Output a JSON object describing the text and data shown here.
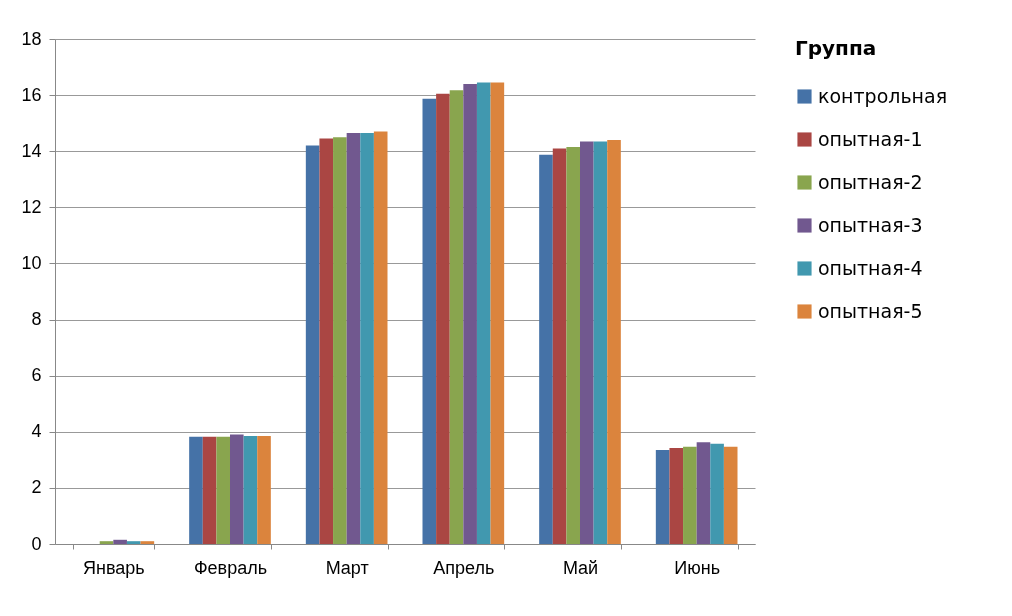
{
  "chart_data": {
    "type": "bar",
    "categories": [
      "Январь",
      "Февраль",
      "Март",
      "Апрель",
      "Май",
      "Июнь"
    ],
    "legend_title": "Группа",
    "legend": "right",
    "grid": "y",
    "ylim": [
      0,
      18
    ],
    "yticks": [
      0,
      2,
      4,
      6,
      8,
      10,
      12,
      14,
      16,
      18
    ],
    "series": [
      {
        "name": "контрольная",
        "color": "#4572a7",
        "values": [
          0,
          3.82,
          14.2,
          15.87,
          13.87,
          3.35
        ]
      },
      {
        "name": "опытная-1",
        "color": "#aa4643",
        "values": [
          0,
          3.82,
          14.45,
          16.05,
          14.1,
          3.42
        ]
      },
      {
        "name": "опытная-2",
        "color": "#89a54e",
        "values": [
          0.1,
          3.82,
          14.5,
          16.17,
          14.15,
          3.47
        ]
      },
      {
        "name": "опытная-3",
        "color": "#71588f",
        "values": [
          0.15,
          3.9,
          14.65,
          16.4,
          14.35,
          3.63
        ]
      },
      {
        "name": "опытная-4",
        "color": "#4198af",
        "values": [
          0.1,
          3.85,
          14.65,
          16.45,
          14.35,
          3.57
        ]
      },
      {
        "name": "опытная-5",
        "color": "#db843d",
        "values": [
          0.1,
          3.85,
          14.7,
          16.45,
          14.4,
          3.47
        ]
      }
    ]
  }
}
